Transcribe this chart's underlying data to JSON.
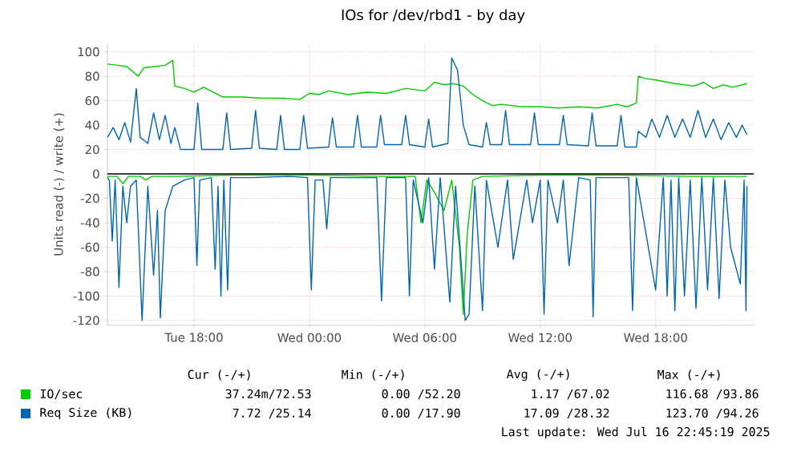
{
  "chart_data": {
    "type": "line",
    "title": "IOs for /dev/rbd1 - by day",
    "ylabel": "Units read (-) / write (+)",
    "xlim": [
      "2025-07-15T13:30",
      "2025-07-16T23:06"
    ],
    "ylim": [
      -124,
      107
    ],
    "xticks": [
      {
        "value": "2025-07-15T18:00",
        "label": "Tue 18:00"
      },
      {
        "value": "2025-07-16T00:00",
        "label": "Wed 00:00"
      },
      {
        "value": "2025-07-16T06:00",
        "label": "Wed 06:00"
      },
      {
        "value": "2025-07-16T12:00",
        "label": "Wed 12:00"
      },
      {
        "value": "2025-07-16T18:00",
        "label": "Wed 18:00"
      }
    ],
    "yticks": [
      -120,
      -100,
      -80,
      -60,
      -40,
      -20,
      0,
      20,
      40,
      60,
      80,
      100
    ],
    "grid": true,
    "legend": "bottom",
    "marker": "none",
    "line_style": "solid",
    "ref_lines": [
      {
        "axis": "y",
        "value": 0,
        "color": "#000000"
      }
    ],
    "series": [
      {
        "name": "IO/sec",
        "color": "#00cc00",
        "x": [
          "2025-07-15T13:30",
          "2025-07-15T14:00",
          "2025-07-15T14:30",
          "2025-07-15T15:06",
          "2025-07-15T15:24",
          "2025-07-15T16:00",
          "2025-07-15T16:30",
          "2025-07-15T16:54",
          "2025-07-15T17:00",
          "2025-07-15T17:30",
          "2025-07-15T18:00",
          "2025-07-15T18:30",
          "2025-07-15T19:00",
          "2025-07-15T19:30",
          "2025-07-15T20:30",
          "2025-07-15T21:30",
          "2025-07-15T22:30",
          "2025-07-15T23:30",
          "2025-07-16T00:00",
          "2025-07-16T00:30",
          "2025-07-16T01:00",
          "2025-07-16T02:00",
          "2025-07-16T03:00",
          "2025-07-16T04:00",
          "2025-07-16T05:00",
          "2025-07-16T06:00",
          "2025-07-16T06:30",
          "2025-07-16T07:00",
          "2025-07-16T07:30",
          "2025-07-16T08:00",
          "2025-07-16T08:30",
          "2025-07-16T09:00",
          "2025-07-16T09:30",
          "2025-07-16T10:00",
          "2025-07-16T11:00",
          "2025-07-16T12:00",
          "2025-07-16T13:00",
          "2025-07-16T14:00",
          "2025-07-16T15:00",
          "2025-07-16T16:00",
          "2025-07-16T16:30",
          "2025-07-16T17:00",
          "2025-07-16T17:06",
          "2025-07-16T17:30",
          "2025-07-16T18:00",
          "2025-07-16T19:00",
          "2025-07-16T20:00",
          "2025-07-16T20:30",
          "2025-07-16T21:00",
          "2025-07-16T21:30",
          "2025-07-16T22:00",
          "2025-07-16T22:45"
        ],
        "values": [
          90,
          89,
          88,
          80,
          87,
          88,
          89,
          93,
          72,
          70,
          67,
          71,
          67,
          63,
          63,
          62,
          62,
          61,
          66,
          65,
          68,
          65,
          67,
          66,
          70,
          68,
          75,
          73,
          74,
          72,
          65,
          60,
          56,
          57,
          55,
          55,
          54,
          55,
          54,
          57,
          55,
          58,
          80,
          78,
          77,
          74,
          72,
          75,
          70,
          73,
          71,
          74
        ]
      },
      {
        "name": "Req Size (KB)",
        "color": "#0066b3",
        "x": [
          "2025-07-15T13:30",
          "2025-07-15T13:48",
          "2025-07-15T14:06",
          "2025-07-15T14:24",
          "2025-07-15T14:42",
          "2025-07-15T15:00",
          "2025-07-15T15:12",
          "2025-07-15T15:36",
          "2025-07-15T15:54",
          "2025-07-15T16:12",
          "2025-07-15T16:30",
          "2025-07-15T16:48",
          "2025-07-15T17:00",
          "2025-07-15T17:18",
          "2025-07-15T18:00",
          "2025-07-15T18:12",
          "2025-07-15T18:24",
          "2025-07-15T19:30",
          "2025-07-15T19:42",
          "2025-07-15T19:54",
          "2025-07-15T21:00",
          "2025-07-15T21:12",
          "2025-07-15T21:24",
          "2025-07-15T22:18",
          "2025-07-15T22:30",
          "2025-07-15T22:42",
          "2025-07-15T23:30",
          "2025-07-15T23:42",
          "2025-07-15T23:54",
          "2025-07-16T01:00",
          "2025-07-16T01:12",
          "2025-07-16T01:24",
          "2025-07-16T02:18",
          "2025-07-16T02:30",
          "2025-07-16T02:42",
          "2025-07-16T03:30",
          "2025-07-16T03:42",
          "2025-07-16T03:54",
          "2025-07-16T04:48",
          "2025-07-16T05:00",
          "2025-07-16T05:12",
          "2025-07-16T06:00",
          "2025-07-16T06:12",
          "2025-07-16T06:24",
          "2025-07-16T07:12",
          "2025-07-16T07:24",
          "2025-07-16T07:42",
          "2025-07-16T08:00",
          "2025-07-16T08:18",
          "2025-07-16T09:00",
          "2025-07-16T09:12",
          "2025-07-16T09:24",
          "2025-07-16T10:00",
          "2025-07-16T10:12",
          "2025-07-16T10:24",
          "2025-07-16T11:30",
          "2025-07-16T11:42",
          "2025-07-16T11:54",
          "2025-07-16T13:00",
          "2025-07-16T13:12",
          "2025-07-16T13:24",
          "2025-07-16T14:30",
          "2025-07-16T14:42",
          "2025-07-16T14:54",
          "2025-07-16T16:00",
          "2025-07-16T16:12",
          "2025-07-16T16:24",
          "2025-07-16T17:00",
          "2025-07-16T17:06",
          "2025-07-16T17:30",
          "2025-07-16T17:48",
          "2025-07-16T18:12",
          "2025-07-16T18:36",
          "2025-07-16T19:00",
          "2025-07-16T19:24",
          "2025-07-16T19:48",
          "2025-07-16T20:12",
          "2025-07-16T20:36",
          "2025-07-16T21:00",
          "2025-07-16T21:24",
          "2025-07-16T21:48",
          "2025-07-16T22:12",
          "2025-07-16T22:30",
          "2025-07-16T22:45"
        ],
        "values": [
          30,
          38,
          28,
          42,
          26,
          70,
          30,
          25,
          50,
          28,
          48,
          25,
          38,
          20,
          20,
          58,
          20,
          20,
          50,
          20,
          21,
          52,
          21,
          20,
          48,
          20,
          20,
          48,
          21,
          22,
          46,
          22,
          22,
          48,
          22,
          22,
          48,
          24,
          24,
          48,
          24,
          22,
          45,
          22,
          25,
          95,
          85,
          40,
          24,
          22,
          42,
          24,
          24,
          52,
          24,
          24,
          50,
          24,
          24,
          48,
          24,
          23,
          50,
          23,
          23,
          48,
          22,
          22,
          35,
          30,
          45,
          30,
          48,
          30,
          45,
          30,
          52,
          30,
          45,
          28,
          42,
          30,
          40,
          32
        ]
      },
      {
        "color": "#00cc00",
        "x": [
          "2025-07-15T13:30",
          "2025-07-15T14:00",
          "2025-07-15T14:18",
          "2025-07-15T14:36",
          "2025-07-15T15:12",
          "2025-07-15T15:30",
          "2025-07-15T15:48",
          "2025-07-15T17:00",
          "2025-07-15T20:00",
          "2025-07-16T00:00",
          "2025-07-16T04:00",
          "2025-07-16T05:30",
          "2025-07-16T05:48",
          "2025-07-16T06:06",
          "2025-07-16T06:30",
          "2025-07-16T07:00",
          "2025-07-16T07:24",
          "2025-07-16T07:48",
          "2025-07-16T08:00",
          "2025-07-16T08:12",
          "2025-07-16T08:30",
          "2025-07-16T09:00",
          "2025-07-16T12:00",
          "2025-07-16T16:00",
          "2025-07-16T20:00",
          "2025-07-16T22:45"
        ],
        "values": [
          -2,
          -2,
          -8,
          -2,
          -2,
          -5,
          -2,
          -2,
          -1,
          -1,
          -2,
          -2,
          -40,
          -5,
          -15,
          -30,
          -5,
          -60,
          -115,
          -50,
          -5,
          -2,
          -1,
          -1,
          -2,
          -2
        ]
      },
      {
        "color": "#0066b3",
        "x": [
          "2025-07-15T13:30",
          "2025-07-15T13:36",
          "2025-07-15T13:45",
          "2025-07-15T13:54",
          "2025-07-15T14:06",
          "2025-07-15T14:18",
          "2025-07-15T14:30",
          "2025-07-15T14:42",
          "2025-07-15T15:00",
          "2025-07-15T15:18",
          "2025-07-15T15:36",
          "2025-07-15T15:54",
          "2025-07-15T16:06",
          "2025-07-15T16:15",
          "2025-07-15T16:30",
          "2025-07-15T16:54",
          "2025-07-15T17:30",
          "2025-07-15T18:00",
          "2025-07-15T18:09",
          "2025-07-15T18:18",
          "2025-07-15T18:54",
          "2025-07-15T19:06",
          "2025-07-15T19:15",
          "2025-07-15T19:24",
          "2025-07-15T19:33",
          "2025-07-15T19:45",
          "2025-07-15T19:54",
          "2025-07-15T21:00",
          "2025-07-15T23:00",
          "2025-07-15T23:54",
          "2025-07-16T00:06",
          "2025-07-16T00:18",
          "2025-07-16T00:42",
          "2025-07-16T00:54",
          "2025-07-16T01:06",
          "2025-07-16T03:30",
          "2025-07-16T03:45",
          "2025-07-16T04:00",
          "2025-07-16T05:00",
          "2025-07-16T05:12",
          "2025-07-16T05:24",
          "2025-07-16T05:54",
          "2025-07-16T06:12",
          "2025-07-16T06:30",
          "2025-07-16T06:48",
          "2025-07-16T07:18",
          "2025-07-16T07:36",
          "2025-07-16T07:54",
          "2025-07-16T08:06",
          "2025-07-16T08:18",
          "2025-07-16T08:36",
          "2025-07-16T09:00",
          "2025-07-16T09:12",
          "2025-07-16T09:48",
          "2025-07-16T10:18",
          "2025-07-16T10:36",
          "2025-07-16T11:18",
          "2025-07-16T11:36",
          "2025-07-16T12:00",
          "2025-07-16T12:12",
          "2025-07-16T12:24",
          "2025-07-16T12:54",
          "2025-07-16T13:12",
          "2025-07-16T13:30",
          "2025-07-16T14:00",
          "2025-07-16T14:36",
          "2025-07-16T14:45",
          "2025-07-16T14:54",
          "2025-07-16T16:36",
          "2025-07-16T16:48",
          "2025-07-16T17:00",
          "2025-07-16T18:00",
          "2025-07-16T18:24",
          "2025-07-16T18:36",
          "2025-07-16T18:48",
          "2025-07-16T19:00",
          "2025-07-16T19:12",
          "2025-07-16T19:30",
          "2025-07-16T19:48",
          "2025-07-16T20:06",
          "2025-07-16T20:24",
          "2025-07-16T20:42",
          "2025-07-16T21:00",
          "2025-07-16T21:18",
          "2025-07-16T21:36",
          "2025-07-16T21:54",
          "2025-07-16T22:24",
          "2025-07-16T22:36",
          "2025-07-16T22:42",
          "2025-07-16T22:45"
        ],
        "values": [
          -3,
          -5,
          -55,
          -5,
          -93,
          -10,
          -40,
          -10,
          -5,
          -120,
          -10,
          -83,
          -30,
          -118,
          -30,
          -10,
          -5,
          -3,
          -75,
          -5,
          -3,
          -78,
          -10,
          -100,
          -5,
          -95,
          -3,
          -3,
          -2,
          -3,
          -95,
          -5,
          -5,
          -45,
          -3,
          -3,
          -104,
          -3,
          -3,
          -100,
          -5,
          -40,
          -3,
          -78,
          -3,
          -105,
          -10,
          -75,
          -120,
          -115,
          -10,
          -112,
          -5,
          -60,
          -5,
          -70,
          -5,
          -40,
          -5,
          -115,
          -5,
          -40,
          -5,
          -75,
          -3,
          -5,
          -117,
          -3,
          -3,
          -112,
          -3,
          -95,
          -3,
          -100,
          -5,
          -112,
          -3,
          -100,
          -5,
          -110,
          -3,
          -95,
          -3,
          -102,
          -5,
          -60,
          -90,
          -5,
          -112,
          -10
        ]
      }
    ],
    "annotations": [
      "Cur (-/+)",
      "Min (-/+)",
      "Avg (-/+)",
      "Max (-/+)",
      "37.24m/72.53",
      "0.00 /52.20",
      "1.17 /67.02",
      "116.68 /93.86",
      "7.72 /25.14",
      "0.00 /17.90",
      "17.09 /28.32",
      "123.70 /94.26",
      "Last update: Wed Jul 16 22:45:19 2025"
    ]
  }
}
